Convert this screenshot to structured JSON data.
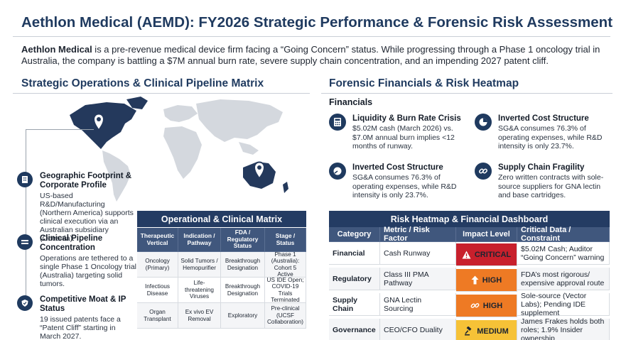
{
  "header": {
    "title": "Aethlon Medical (AEMD): FY2026 Strategic Performance & Forensic Risk Assessment",
    "intro_company": "Aethlon Medical",
    "intro_text": " is a pre-revenue medical device firm facing a “Going Concern” status. While progressing through a Phase 1 oncology trial in Australia, the company is battling a $7M annual burn rate, severe supply chain concentration, and an impending 2027 patent cliff."
  },
  "left": {
    "section_title": "Strategic Operations & Clinical Pipeline Matrix",
    "features": [
      {
        "title": "Geographic Footprint & Corporate Profile",
        "body": "US-based R&D/Manufacturing (Northern America) supports clinical execution via an Australian subsidiary (Oceania).",
        "icon": "building-icon"
      },
      {
        "title": "Clinical Pipeline Concentration",
        "body": "Operations are tethered to a single Phase 1 Oncology trial (Australia) targeting solid tumors.",
        "icon": "pipeline-icon"
      },
      {
        "title": "Competitive Moat & IP Status",
        "body": "19 issued patents face a “Patent Cliff” starting in March 2027.",
        "icon": "shield-icon"
      }
    ],
    "ops_table": {
      "title": "Operational & Clinical Matrix",
      "headers": [
        "Therapeutic Vertical",
        "Indication / Pathway",
        "FDA / Regulatory Status",
        "Stage / Status"
      ],
      "rows": [
        [
          "Oncology (Primary)",
          "Solid Tumors / Hemopurifier",
          "Breakthrough Designation",
          "Phase 1 (Australia): Cohort 5 Active"
        ],
        [
          "Infectious Disease",
          "Life-threatening Viruses",
          "Breakthrough Designation",
          "US IDE Open; COVID-19 Trials Terminated"
        ],
        [
          "Organ Transplant",
          "Ex vivo EV Removal",
          "Exploratory",
          "Pre-clinical (UCSF Collaboration)"
        ]
      ]
    }
  },
  "right": {
    "section_title": "Forensic Financials & Risk Heatmap",
    "financials_label": "Financials",
    "items": [
      {
        "title": "Liquidity & Burn Rate Crisis",
        "body": "$5.02M cash (March 2026) vs. $7.0M annual burn implies <12 months of runway.",
        "icon": "calculator-icon"
      },
      {
        "title": "Inverted Cost Structure",
        "body": "SG&A consumes 76.3% of operating expenses, while R&D intensity is only 23.7%.",
        "icon": "pie-chart-icon"
      },
      {
        "title": "Inverted Cost Structure",
        "body": "SG&A consumes 76.3% of operating expenses, while R&D intensity is only 23.7%.",
        "icon": "gauge-icon"
      },
      {
        "title": "Supply Chain Fragility",
        "body": "Zero written contracts with sole-source suppliers for GNA lectin and base cartridges.",
        "icon": "link-icon"
      }
    ],
    "risk_table": {
      "title": "Risk Heatmap & Financial Dashboard",
      "headers": [
        "Category",
        "Metric / Risk Factor",
        "Impact Level",
        "Critical Data / Constraint"
      ],
      "rows": [
        {
          "category": "Financial",
          "metric": "Cash Runway",
          "level": "CRITICAL",
          "data": "$5.02M Cash; Auditor “Going Concern” warning"
        },
        {
          "category": "Regulatory",
          "metric": "Class III PMA Pathway",
          "level": "HIGH",
          "data": "FDA’s most rigorous/ expensive approval route"
        },
        {
          "category": "Supply Chain",
          "metric": "GNA Lectin Sourcing",
          "level": "HIGH",
          "data": "Sole-source (Vector Labs); Pending IDE supplement"
        },
        {
          "category": "Governance",
          "metric": "CEO/CFO Duality",
          "level": "MEDIUM",
          "data": "James Frakes holds both roles; 1.9% Insider ownership"
        }
      ]
    }
  },
  "colors": {
    "navy": "#1f3a5f",
    "critical": "#c8202c",
    "high": "#ee7a24",
    "medium": "#f6c237"
  }
}
